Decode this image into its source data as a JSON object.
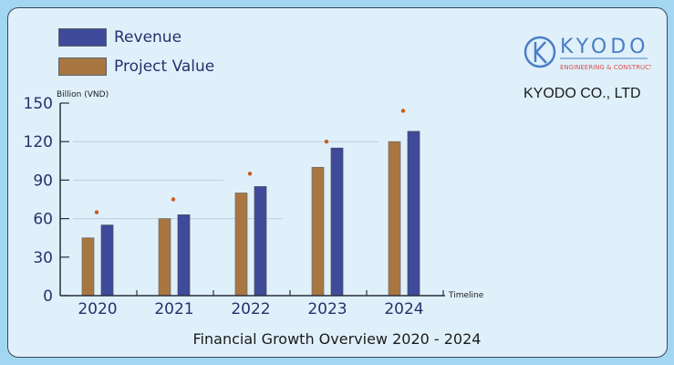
{
  "company": {
    "logo_text": "KYODO",
    "logo_sub": "ENGINEERING & CONSTRUCTION",
    "name": "KYODO CO., LTD"
  },
  "colors": {
    "revenue": "#3f4a9a",
    "project": "#a87640",
    "dot": "#cc5a1e",
    "axis": "#2b2f6b"
  },
  "chart_data": {
    "type": "bar",
    "title": "Financial Growth Overview 2020 - 2024",
    "ylabel": "Billion (VND)",
    "xlabel": "Timeline",
    "ylim": [
      0,
      150
    ],
    "yticks": [
      0,
      30,
      60,
      90,
      120,
      150
    ],
    "categories": [
      "2020",
      "2021",
      "2022",
      "2023",
      "2024"
    ],
    "series": [
      {
        "name": "Project Value",
        "values": [
          45,
          60,
          80,
          100,
          120
        ]
      },
      {
        "name": "Revenue",
        "values": [
          55,
          63,
          85,
          115,
          128
        ]
      }
    ],
    "markers": {
      "name": "dots",
      "values": [
        65,
        75,
        95,
        120,
        144
      ]
    },
    "legend": "top-left",
    "grid": true
  }
}
